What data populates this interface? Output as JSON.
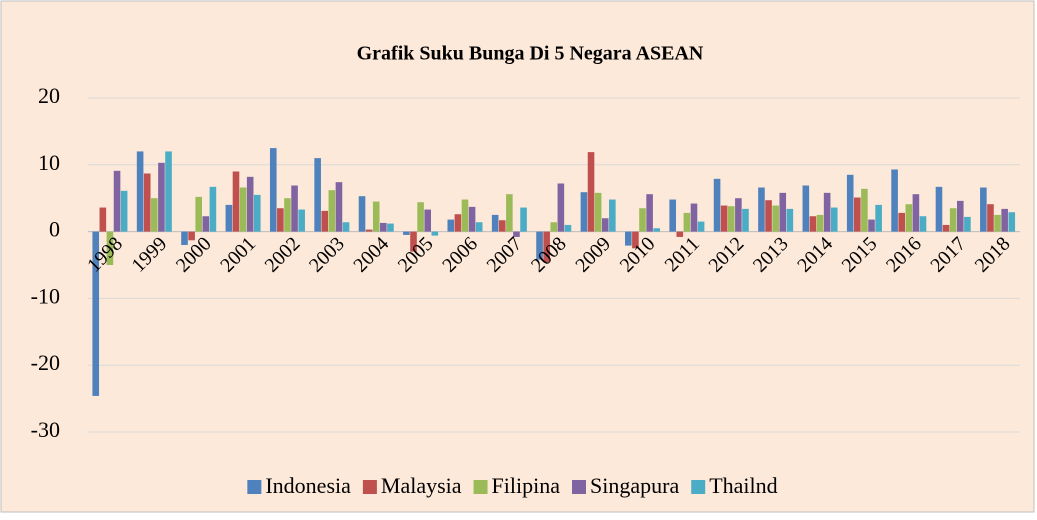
{
  "chart_data": {
    "type": "bar",
    "title": "Grafik Suku Bunga Di 5 Negara ASEAN",
    "categories": [
      "1998",
      "1999",
      "2000",
      "2001",
      "2002",
      "2003",
      "2004",
      "2005",
      "2006",
      "2007",
      "2008",
      "2009",
      "2010",
      "2011",
      "2012",
      "2013",
      "2014",
      "2015",
      "2016",
      "2017",
      "2018"
    ],
    "series": [
      {
        "name": "Indonesia",
        "color": "#4f81bd",
        "values": [
          -24.6,
          12,
          -2,
          4,
          12.5,
          11,
          5.3,
          -0.5,
          1.8,
          2.5,
          -4.2,
          5.9,
          -2.1,
          4.8,
          7.9,
          6.6,
          6.9,
          8.5,
          9.3,
          6.7,
          6.6
        ]
      },
      {
        "name": "Malaysia",
        "color": "#c0504d",
        "values": [
          3.6,
          8.7,
          -1.3,
          9,
          3.5,
          3.1,
          0.3,
          -3,
          2.6,
          1.7,
          -4.6,
          11.9,
          -2.5,
          -0.8,
          3.9,
          4.7,
          2.3,
          5.1,
          2.8,
          1,
          4.1
        ]
      },
      {
        "name": "Filipina",
        "color": "#9bbb59",
        "values": [
          -5,
          5,
          5.2,
          6.6,
          5,
          6.2,
          4.5,
          4.4,
          4.8,
          5.6,
          1.4,
          5.8,
          3.5,
          2.8,
          3.8,
          3.9,
          2.5,
          6.4,
          4.1,
          3.5,
          2.5
        ]
      },
      {
        "name": "Singapura",
        "color": "#8064a2",
        "values": [
          9.1,
          10.3,
          2.3,
          8.2,
          6.9,
          7.4,
          1.3,
          3.3,
          3.7,
          -0.8,
          7.2,
          2,
          5.6,
          4.2,
          5,
          5.8,
          5.8,
          1.8,
          5.6,
          4.6,
          3.4
        ]
      },
      {
        "name": "Thailnd",
        "color": "#4bacc6",
        "values": [
          6.1,
          12,
          6.7,
          5.5,
          3.3,
          1.4,
          1.2,
          -0.6,
          1.4,
          3.6,
          1,
          4.8,
          0.5,
          1.5,
          3.4,
          3.4,
          3.6,
          4,
          2.3,
          2.2,
          2.9
        ]
      }
    ],
    "ylim": [
      -30,
      20
    ],
    "yticks": [
      -30,
      -20,
      -10,
      0,
      10,
      20
    ],
    "grid": true,
    "legend": "bottom"
  }
}
